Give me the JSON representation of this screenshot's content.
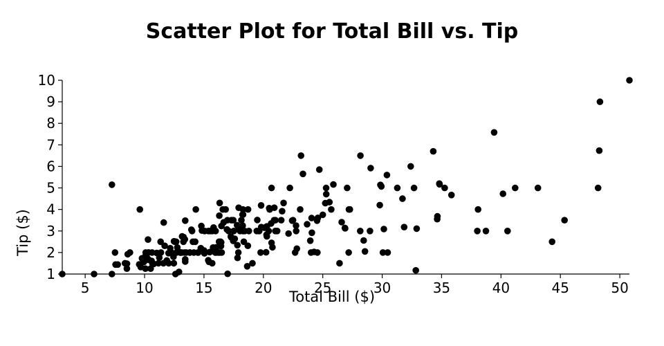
{
  "chart_data": {
    "type": "scatter",
    "title": "Scatter Plot for Total Bill vs. Tip",
    "xlabel": "Total Bill ($)",
    "ylabel": "Tip ($)",
    "xlim": [
      3.07,
      50.81
    ],
    "ylim": [
      1,
      10
    ],
    "x_ticks": [
      "5",
      "10",
      "15",
      "20",
      "25",
      "30",
      "35",
      "40",
      "45",
      "50"
    ],
    "y_ticks": [
      "1",
      "2",
      "3",
      "4",
      "5",
      "6",
      "7",
      "8",
      "9",
      "10"
    ],
    "grid": false,
    "marker_color": "#000000",
    "points": [
      [
        16.99,
        1.01
      ],
      [
        10.34,
        1.66
      ],
      [
        21.01,
        3.5
      ],
      [
        23.68,
        3.31
      ],
      [
        24.59,
        3.61
      ],
      [
        25.29,
        4.71
      ],
      [
        8.77,
        2.0
      ],
      [
        26.88,
        3.12
      ],
      [
        15.04,
        1.96
      ],
      [
        14.78,
        3.23
      ],
      [
        10.27,
        1.71
      ],
      [
        35.26,
        5.0
      ],
      [
        15.42,
        1.57
      ],
      [
        18.43,
        3.0
      ],
      [
        14.83,
        3.02
      ],
      [
        21.58,
        3.92
      ],
      [
        10.33,
        1.67
      ],
      [
        16.29,
        3.71
      ],
      [
        16.97,
        3.5
      ],
      [
        20.65,
        3.35
      ],
      [
        17.92,
        4.08
      ],
      [
        20.29,
        2.75
      ],
      [
        15.77,
        2.23
      ],
      [
        39.42,
        7.58
      ],
      [
        19.82,
        3.18
      ],
      [
        17.81,
        2.34
      ],
      [
        13.37,
        2.0
      ],
      [
        12.69,
        2.0
      ],
      [
        21.7,
        4.3
      ],
      [
        19.65,
        3.0
      ],
      [
        9.55,
        1.45
      ],
      [
        18.35,
        2.5
      ],
      [
        15.06,
        3.0
      ],
      [
        20.69,
        2.45
      ],
      [
        17.78,
        3.27
      ],
      [
        24.06,
        3.6
      ],
      [
        16.31,
        2.0
      ],
      [
        16.93,
        3.07
      ],
      [
        18.69,
        2.31
      ],
      [
        31.27,
        5.0
      ],
      [
        16.04,
        2.24
      ],
      [
        17.46,
        2.54
      ],
      [
        13.94,
        3.06
      ],
      [
        9.68,
        1.32
      ],
      [
        30.4,
        5.6
      ],
      [
        18.29,
        3.0
      ],
      [
        22.23,
        5.0
      ],
      [
        32.4,
        6.0
      ],
      [
        28.55,
        2.05
      ],
      [
        18.04,
        3.0
      ],
      [
        12.54,
        2.5
      ],
      [
        10.29,
        2.6
      ],
      [
        34.81,
        5.2
      ],
      [
        9.94,
        1.56
      ],
      [
        25.56,
        4.34
      ],
      [
        19.49,
        3.51
      ],
      [
        38.01,
        3.0
      ],
      [
        26.41,
        1.5
      ],
      [
        11.24,
        1.76
      ],
      [
        48.27,
        6.73
      ],
      [
        20.29,
        3.21
      ],
      [
        13.81,
        2.0
      ],
      [
        11.02,
        1.98
      ],
      [
        18.29,
        3.76
      ],
      [
        17.59,
        2.64
      ],
      [
        20.08,
        3.15
      ],
      [
        16.45,
        2.47
      ],
      [
        3.07,
        1.0
      ],
      [
        20.23,
        2.01
      ],
      [
        15.01,
        2.09
      ],
      [
        12.02,
        1.97
      ],
      [
        17.07,
        3.0
      ],
      [
        26.86,
        3.14
      ],
      [
        25.28,
        5.0
      ],
      [
        14.73,
        2.2
      ],
      [
        10.51,
        1.25
      ],
      [
        17.92,
        3.08
      ],
      [
        27.2,
        4.0
      ],
      [
        22.76,
        3.0
      ],
      [
        17.29,
        2.71
      ],
      [
        19.44,
        3.0
      ],
      [
        16.66,
        3.4
      ],
      [
        10.07,
        1.83
      ],
      [
        32.68,
        5.0
      ],
      [
        15.98,
        2.03
      ],
      [
        34.83,
        5.17
      ],
      [
        13.03,
        2.0
      ],
      [
        18.28,
        4.0
      ],
      [
        24.71,
        5.85
      ],
      [
        21.16,
        3.0
      ],
      [
        28.97,
        3.0
      ],
      [
        22.49,
        3.5
      ],
      [
        5.75,
        1.0
      ],
      [
        16.32,
        4.3
      ],
      [
        22.75,
        3.25
      ],
      [
        40.17,
        4.73
      ],
      [
        27.28,
        4.0
      ],
      [
        12.03,
        1.5
      ],
      [
        21.01,
        3.0
      ],
      [
        12.46,
        1.5
      ],
      [
        11.35,
        2.5
      ],
      [
        15.38,
        3.0
      ],
      [
        44.3,
        2.5
      ],
      [
        22.42,
        3.48
      ],
      [
        20.92,
        4.08
      ],
      [
        15.36,
        1.64
      ],
      [
        20.49,
        4.06
      ],
      [
        25.21,
        4.29
      ],
      [
        18.24,
        3.76
      ],
      [
        14.31,
        4.0
      ],
      [
        14.0,
        3.0
      ],
      [
        7.25,
        1.0
      ],
      [
        38.07,
        4.0
      ],
      [
        23.95,
        2.55
      ],
      [
        25.71,
        4.0
      ],
      [
        17.31,
        3.5
      ],
      [
        29.93,
        5.07
      ],
      [
        10.65,
        1.5
      ],
      [
        12.43,
        1.8
      ],
      [
        24.08,
        2.92
      ],
      [
        11.69,
        2.31
      ],
      [
        13.42,
        1.68
      ],
      [
        14.26,
        2.5
      ],
      [
        15.95,
        2.0
      ],
      [
        12.48,
        2.52
      ],
      [
        29.8,
        4.2
      ],
      [
        8.52,
        1.48
      ],
      [
        14.52,
        2.0
      ],
      [
        11.38,
        2.0
      ],
      [
        22.82,
        2.18
      ],
      [
        19.08,
        1.5
      ],
      [
        20.27,
        2.83
      ],
      [
        11.17,
        1.5
      ],
      [
        12.26,
        2.0
      ],
      [
        18.26,
        3.25
      ],
      [
        8.51,
        1.25
      ],
      [
        10.33,
        2.0
      ],
      [
        14.15,
        2.0
      ],
      [
        16.0,
        2.0
      ],
      [
        13.16,
        2.75
      ],
      [
        17.47,
        3.5
      ],
      [
        34.3,
        6.7
      ],
      [
        41.19,
        5.0
      ],
      [
        27.05,
        5.0
      ],
      [
        16.43,
        2.3
      ],
      [
        8.35,
        1.5
      ],
      [
        18.64,
        1.36
      ],
      [
        11.87,
        1.63
      ],
      [
        9.78,
        1.73
      ],
      [
        7.51,
        2.0
      ],
      [
        14.07,
        2.5
      ],
      [
        13.13,
        2.0
      ],
      [
        17.26,
        2.74
      ],
      [
        24.55,
        2.0
      ],
      [
        19.77,
        2.0
      ],
      [
        29.85,
        5.14
      ],
      [
        48.17,
        5.0
      ],
      [
        25.0,
        3.75
      ],
      [
        13.39,
        2.61
      ],
      [
        16.49,
        2.0
      ],
      [
        21.5,
        3.5
      ],
      [
        12.66,
        2.5
      ],
      [
        16.21,
        2.0
      ],
      [
        13.81,
        2.0
      ],
      [
        17.51,
        3.0
      ],
      [
        24.52,
        3.48
      ],
      [
        20.76,
        2.24
      ],
      [
        31.71,
        4.5
      ],
      [
        10.59,
        1.61
      ],
      [
        10.63,
        2.0
      ],
      [
        50.81,
        10.0
      ],
      [
        15.81,
        3.16
      ],
      [
        7.25,
        5.15
      ],
      [
        31.85,
        3.18
      ],
      [
        16.82,
        4.0
      ],
      [
        32.9,
        3.11
      ],
      [
        17.89,
        2.0
      ],
      [
        14.48,
        2.0
      ],
      [
        9.6,
        4.0
      ],
      [
        34.63,
        3.55
      ],
      [
        34.65,
        3.68
      ],
      [
        23.33,
        5.65
      ],
      [
        45.35,
        3.5
      ],
      [
        23.17,
        6.5
      ],
      [
        40.55,
        3.0
      ],
      [
        20.69,
        5.0
      ],
      [
        20.9,
        3.5
      ],
      [
        30.46,
        2.0
      ],
      [
        18.15,
        3.5
      ],
      [
        23.1,
        4.0
      ],
      [
        15.69,
        1.5
      ],
      [
        19.81,
        4.19
      ],
      [
        28.44,
        2.56
      ],
      [
        15.48,
        2.02
      ],
      [
        16.58,
        4.0
      ],
      [
        7.56,
        1.44
      ],
      [
        10.34,
        2.0
      ],
      [
        43.11,
        5.0
      ],
      [
        13.0,
        2.0
      ],
      [
        13.51,
        2.0
      ],
      [
        18.71,
        4.0
      ],
      [
        12.74,
        2.01
      ],
      [
        13.0,
        2.0
      ],
      [
        16.4,
        2.5
      ],
      [
        20.53,
        4.0
      ],
      [
        16.47,
        3.23
      ],
      [
        26.59,
        3.41
      ],
      [
        38.73,
        3.0
      ],
      [
        24.27,
        2.03
      ],
      [
        12.76,
        2.23
      ],
      [
        30.06,
        2.0
      ],
      [
        25.89,
        5.16
      ],
      [
        48.33,
        9.0
      ],
      [
        13.27,
        2.5
      ],
      [
        28.17,
        6.5
      ],
      [
        12.9,
        1.1
      ],
      [
        28.15,
        3.0
      ],
      [
        11.59,
        1.5
      ],
      [
        7.74,
        1.44
      ],
      [
        30.14,
        3.09
      ],
      [
        12.16,
        2.2
      ],
      [
        13.42,
        3.48
      ],
      [
        8.58,
        1.92
      ],
      [
        15.98,
        3.0
      ],
      [
        13.42,
        1.58
      ],
      [
        16.27,
        2.5
      ],
      [
        10.09,
        2.0
      ],
      [
        20.45,
        3.0
      ],
      [
        13.28,
        2.72
      ],
      [
        22.12,
        2.88
      ],
      [
        24.01,
        2.0
      ],
      [
        15.69,
        3.0
      ],
      [
        11.61,
        3.39
      ],
      [
        10.77,
        1.47
      ],
      [
        15.53,
        3.0
      ],
      [
        10.07,
        1.25
      ],
      [
        12.6,
        1.0
      ],
      [
        32.83,
        1.17
      ],
      [
        35.83,
        4.67
      ],
      [
        29.03,
        5.92
      ],
      [
        27.18,
        2.0
      ],
      [
        22.67,
        2.0
      ],
      [
        17.82,
        1.75
      ],
      [
        18.78,
        3.0
      ]
    ]
  }
}
